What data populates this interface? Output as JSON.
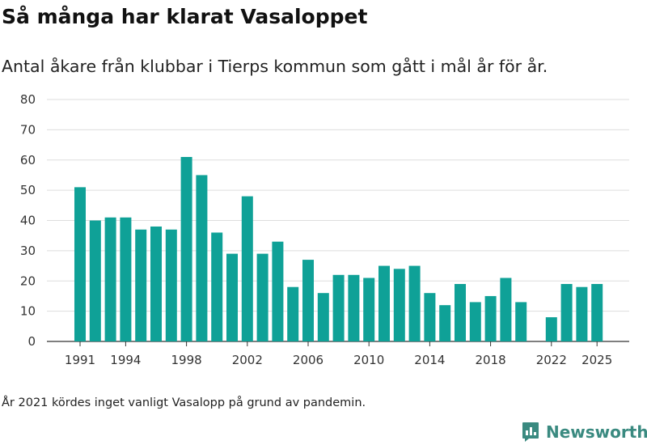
{
  "title": "Så många har klarat Vasaloppet",
  "subtitle": "Antal åkare från klubbar i Tierps kommun som gått i mål år för år.",
  "note": "År 2021 kördes inget vanligt Vasalopp på grund av pandemin.",
  "brand": {
    "name": "Newsworthy",
    "icon": "newsworthy-logo-icon",
    "color": "#3a8a80"
  },
  "colors": {
    "bar": "#0fa197",
    "grid": "#dddddd",
    "axis": "#333333"
  },
  "chart_data": {
    "type": "bar",
    "title": "Så många har klarat Vasaloppet",
    "xlabel": "",
    "ylabel": "",
    "ylim": [
      0,
      80
    ],
    "yticks": [
      0,
      10,
      20,
      30,
      40,
      50,
      60,
      70,
      80
    ],
    "xticks": [
      1991,
      1994,
      1998,
      2002,
      2006,
      2010,
      2014,
      2018,
      2022,
      2025
    ],
    "grid": true,
    "categories": [
      1991,
      1992,
      1993,
      1994,
      1995,
      1996,
      1997,
      1998,
      1999,
      2000,
      2001,
      2002,
      2003,
      2004,
      2005,
      2006,
      2007,
      2008,
      2009,
      2010,
      2011,
      2012,
      2013,
      2014,
      2015,
      2016,
      2017,
      2018,
      2019,
      2020,
      2021,
      2022,
      2023,
      2024,
      2025
    ],
    "values": [
      51,
      40,
      41,
      41,
      37,
      38,
      37,
      61,
      55,
      36,
      29,
      48,
      29,
      33,
      18,
      27,
      16,
      22,
      22,
      21,
      25,
      24,
      25,
      16,
      12,
      19,
      13,
      15,
      21,
      13,
      null,
      8,
      19,
      18,
      19
    ]
  }
}
